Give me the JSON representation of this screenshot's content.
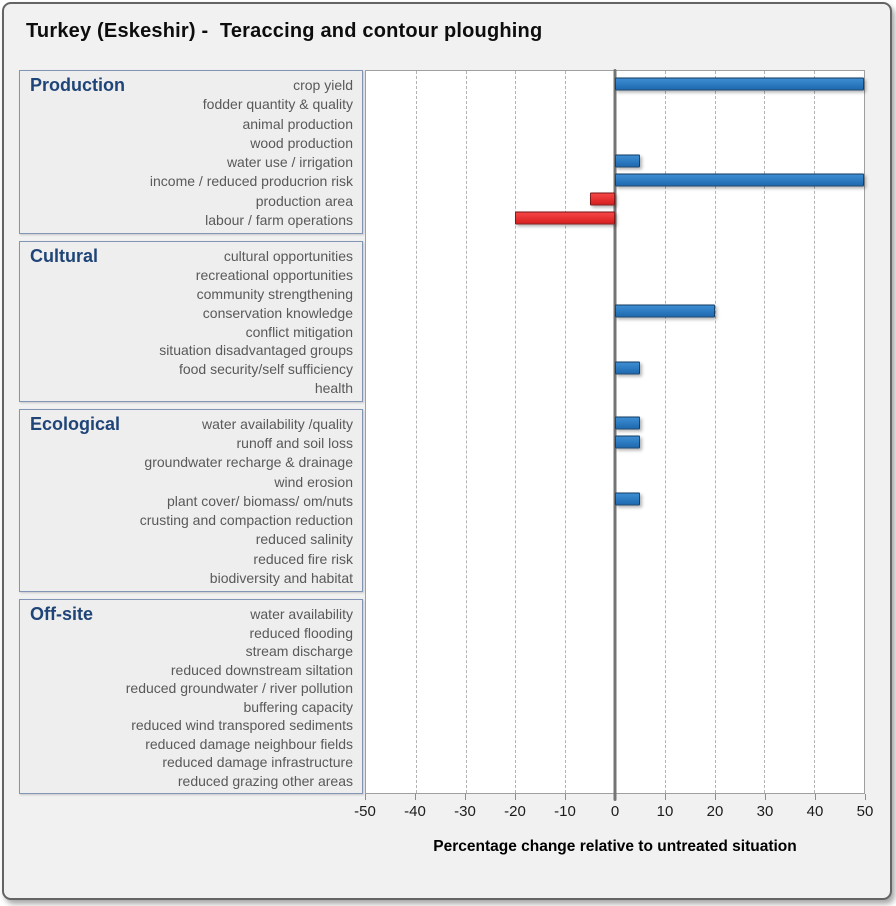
{
  "title": "Turkey (Eskeshir) -  Teraccing and contour ploughing",
  "axis": {
    "ticks": [
      -50,
      -40,
      -30,
      -20,
      -10,
      0,
      10,
      20,
      30,
      40,
      50
    ],
    "label": "Percentage change relative to untreated situation"
  },
  "colors": {
    "positive_bar": "#2673be",
    "negative_bar": "#e52a2a",
    "panel_header": "#1f4477",
    "row_label": "#595959",
    "zero_line": "#747474",
    "gridline": "#b3b3b3"
  },
  "chart_data": {
    "type": "bar",
    "orientation": "horizontal",
    "title": "Turkey (Eskeshir) -  Teraccing and contour ploughing",
    "xlabel": "Percentage change relative to untreated situation",
    "xlim": [
      -50,
      50
    ],
    "grid": "vertical-dashed",
    "legend": "none",
    "groups": [
      {
        "name": "Production",
        "items": [
          {
            "label": "crop yield",
            "value": 50
          },
          {
            "label": "fodder quantity & quality",
            "value": 0
          },
          {
            "label": "animal production",
            "value": 0
          },
          {
            "label": "wood production",
            "value": 0
          },
          {
            "label": "water use / irrigation",
            "value": 5
          },
          {
            "label": "income / reduced producrion risk",
            "value": 50
          },
          {
            "label": "production area",
            "value": -5
          },
          {
            "label": "labour / farm operations",
            "value": -20
          }
        ]
      },
      {
        "name": "Cultural",
        "items": [
          {
            "label": "cultural opportunities",
            "value": 0
          },
          {
            "label": "recreational opportunities",
            "value": 0
          },
          {
            "label": "community strengthening",
            "value": 0
          },
          {
            "label": "conservation knowledge",
            "value": 20
          },
          {
            "label": "conflict mitigation",
            "value": 0
          },
          {
            "label": "situation disadvantaged groups",
            "value": 0
          },
          {
            "label": "food security/self sufficiency",
            "value": 5
          },
          {
            "label": "health",
            "value": 0
          }
        ]
      },
      {
        "name": "Ecological",
        "items": [
          {
            "label": "water availability /quality",
            "value": 5
          },
          {
            "label": "runoff and soil loss",
            "value": 5
          },
          {
            "label": "groundwater recharge & drainage",
            "value": 0
          },
          {
            "label": "wind erosion",
            "value": 0
          },
          {
            "label": "plant cover/ biomass/ om/nuts",
            "value": 5
          },
          {
            "label": "crusting and compaction reduction",
            "value": 0
          },
          {
            "label": "reduced salinity",
            "value": 0
          },
          {
            "label": "reduced fire risk",
            "value": 0
          },
          {
            "label": "biodiversity and habitat",
            "value": 0
          }
        ]
      },
      {
        "name": "Off-site",
        "items": [
          {
            "label": "water availability",
            "value": 0
          },
          {
            "label": "reduced flooding",
            "value": 0
          },
          {
            "label": "stream discharge",
            "value": 0
          },
          {
            "label": "reduced downstream siltation",
            "value": 0
          },
          {
            "label": "reduced groundwater / river pollution",
            "value": 0
          },
          {
            "label": "buffering capacity",
            "value": 0
          },
          {
            "label": "reduced wind transpored sediments",
            "value": 0
          },
          {
            "label": "reduced damage neighbour fields",
            "value": 0
          },
          {
            "label": "reduced damage infrastructure",
            "value": 0
          },
          {
            "label": "reduced grazing other areas",
            "value": 0
          }
        ]
      }
    ]
  }
}
